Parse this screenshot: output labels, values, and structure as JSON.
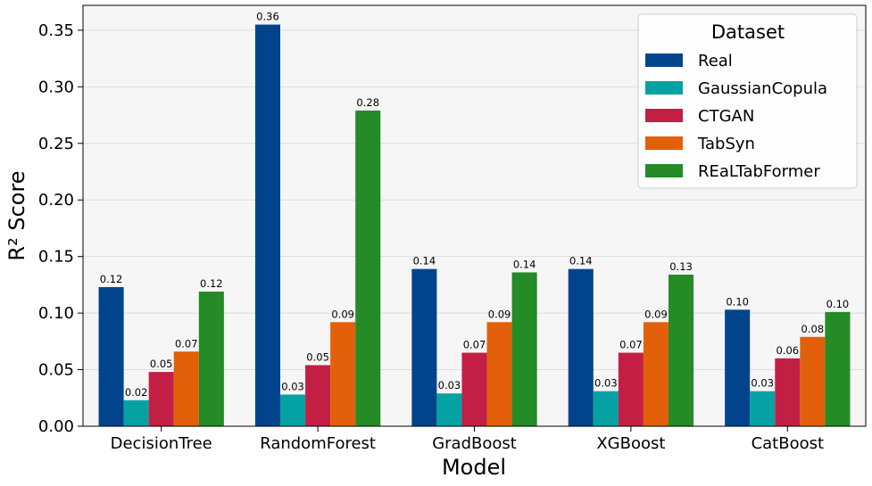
{
  "chart_data": {
    "type": "bar",
    "xlabel": "Model",
    "ylabel": "R² Score",
    "ylim": [
      0,
      0.372
    ],
    "yticks": [
      "0.00",
      "0.05",
      "0.10",
      "0.15",
      "0.20",
      "0.25",
      "0.30",
      "0.35"
    ],
    "grid": "horizontal",
    "categories": [
      "DecisionTree",
      "RandomForest",
      "GradBoost",
      "XGBoost",
      "CatBoost"
    ],
    "legend": {
      "title": "Dataset",
      "placement": "top-right"
    },
    "series": [
      {
        "name": "Real",
        "color": "#02448c",
        "values": [
          0.123,
          0.355,
          0.139,
          0.139,
          0.103
        ],
        "labels": [
          "0.12",
          "0.36",
          "0.14",
          "0.14",
          "0.10"
        ]
      },
      {
        "name": "GaussianCopula",
        "color": "#05a2a4",
        "values": [
          0.023,
          0.028,
          0.029,
          0.031,
          0.031
        ],
        "labels": [
          "0.02",
          "0.03",
          "0.03",
          "0.03",
          "0.03"
        ]
      },
      {
        "name": "CTGAN",
        "color": "#c31f45",
        "values": [
          0.048,
          0.054,
          0.065,
          0.065,
          0.06
        ],
        "labels": [
          "0.05",
          "0.05",
          "0.07",
          "0.07",
          "0.06"
        ]
      },
      {
        "name": "TabSyn",
        "color": "#e26009",
        "values": [
          0.066,
          0.092,
          0.092,
          0.092,
          0.079
        ],
        "labels": [
          "0.07",
          "0.09",
          "0.09",
          "0.09",
          "0.08"
        ]
      },
      {
        "name": "REaLTabFormer",
        "color": "#248b26",
        "values": [
          0.119,
          0.279,
          0.136,
          0.134,
          0.101
        ],
        "labels": [
          "0.12",
          "0.28",
          "0.14",
          "0.13",
          "0.10"
        ]
      }
    ]
  }
}
